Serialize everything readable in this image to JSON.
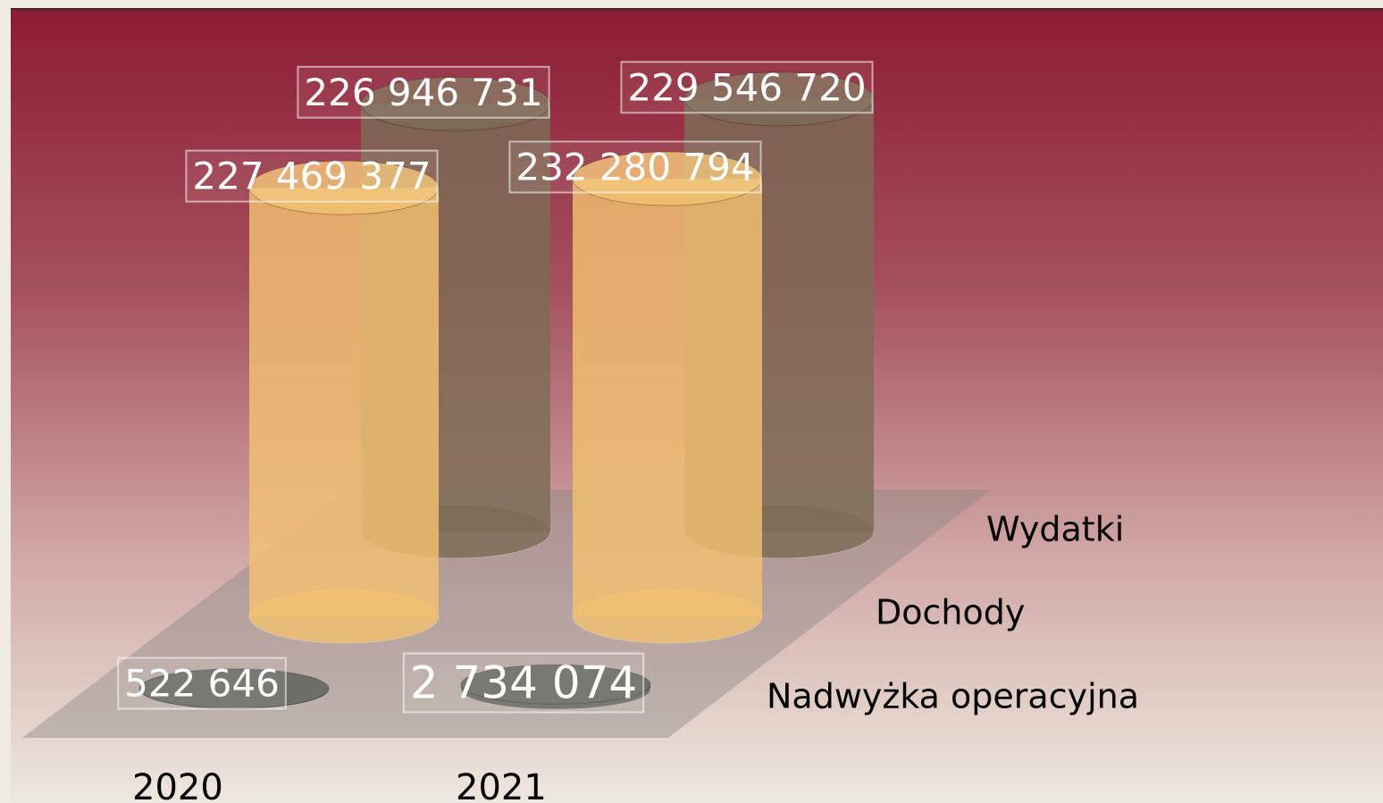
{
  "chart_data": {
    "type": "cylinder3d",
    "categories": [
      "2020",
      "2021"
    ],
    "series": [
      {
        "name": "Nadwyżka operacyjna",
        "color": "#6e6e69",
        "values": [
          522646,
          2734074
        ],
        "value_labels": [
          "522 646",
          "2 734 074"
        ]
      },
      {
        "name": "Dochody",
        "color": "#f2c170",
        "values": [
          227469377,
          232280794
        ],
        "value_labels": [
          "227 469 377",
          "232 280 794"
        ]
      },
      {
        "name": "Wydatki",
        "color": "#7d6b55",
        "values": [
          226946731,
          229546720
        ],
        "value_labels": [
          "226 946 731",
          "229 546 720"
        ]
      }
    ]
  }
}
